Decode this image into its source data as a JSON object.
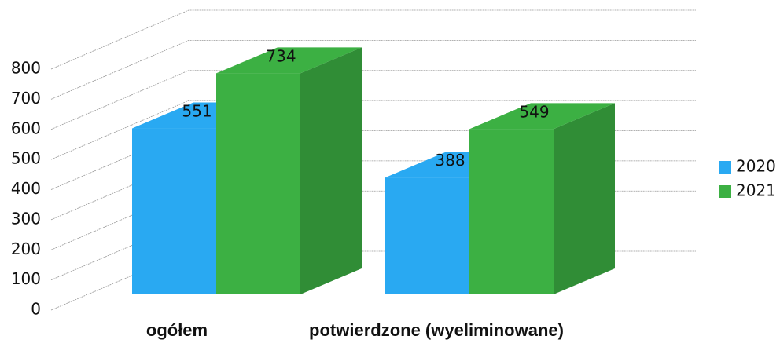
{
  "chart_data": {
    "type": "bar3d",
    "categories": [
      "ogółem",
      "potwierdzone (wyeliminowane)"
    ],
    "series": [
      {
        "name": "2020",
        "color": "#29a9f2",
        "values": [
          551,
          388
        ]
      },
      {
        "name": "2021",
        "color": "#3cb043",
        "values": [
          734,
          549
        ]
      }
    ],
    "ylim": [
      0,
      800
    ],
    "yticks": [
      0,
      100,
      200,
      300,
      400,
      500,
      600,
      700,
      800
    ],
    "grid": true,
    "legend": "right"
  }
}
